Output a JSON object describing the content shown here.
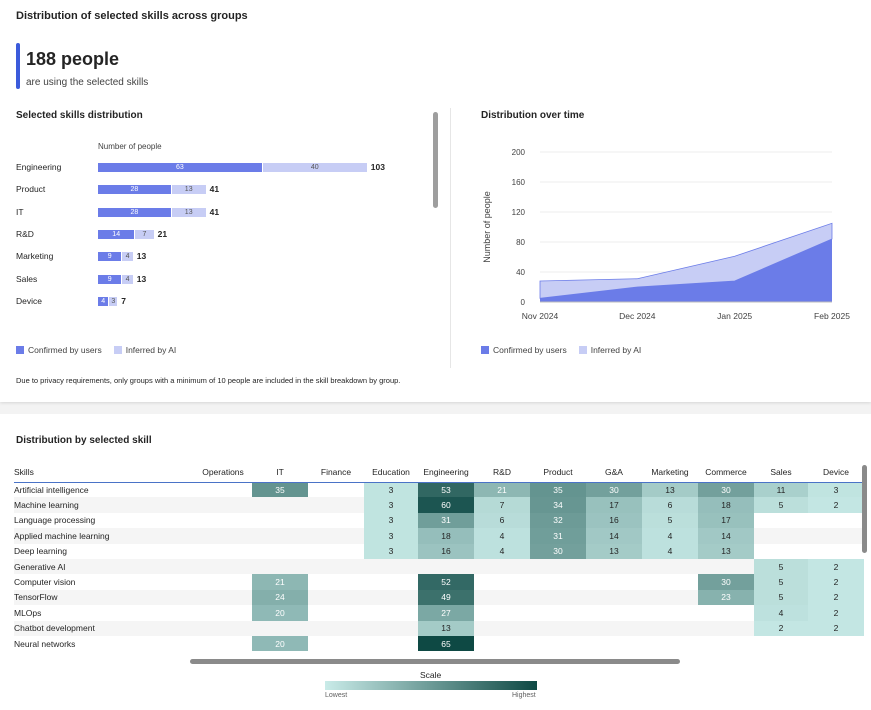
{
  "header": {
    "title": "Distribution of selected skills across groups",
    "count": "188 people",
    "subtitle": "are using the selected skills"
  },
  "skills_chart": {
    "title": "Selected skills distribution",
    "axis_label": "Number of people",
    "rows": [
      {
        "group": "Engineering",
        "confirmed": 63,
        "inferred": 40,
        "total": 103
      },
      {
        "group": "Product",
        "confirmed": 28,
        "inferred": 13,
        "total": 41
      },
      {
        "group": "IT",
        "confirmed": 28,
        "inferred": 13,
        "total": 41
      },
      {
        "group": "R&D",
        "confirmed": 14,
        "inferred": 7,
        "total": 21
      },
      {
        "group": "Marketing",
        "confirmed": 9,
        "inferred": 4,
        "total": 13
      },
      {
        "group": "Sales",
        "confirmed": 9,
        "inferred": 4,
        "total": 13
      },
      {
        "group": "Device",
        "confirmed": 4,
        "inferred": 3,
        "total": 7
      }
    ],
    "legend": [
      "Confirmed by users",
      "Inferred by AI"
    ],
    "note": "Due to privacy requirements, only groups with a minimum of 10 people are included in the skill breakdown by group."
  },
  "time_chart": {
    "title": "Distribution over time",
    "ylabel": "Number of people",
    "y_ticks": [
      "200",
      "160",
      "120",
      "80",
      "40",
      "0"
    ],
    "x_ticks": [
      "Nov 2024",
      "Dec 2024",
      "Jan 2025",
      "Feb 2025"
    ],
    "legend": [
      "Confirmed by users",
      "Inferred by AI"
    ]
  },
  "chart_data": {
    "type": "area",
    "x": [
      "Nov 2024",
      "Dec 2024",
      "Jan 2025",
      "Feb 2025"
    ],
    "ylim": [
      0,
      200
    ],
    "ylabel": "Number of people",
    "series": [
      {
        "name": "Confirmed by users",
        "values": [
          5,
          20,
          28,
          84
        ]
      },
      {
        "name": "Inferred by AI",
        "values": [
          23,
          11,
          33,
          21
        ]
      }
    ]
  },
  "heatmap": {
    "title": "Distribution by selected skill",
    "columns": [
      "Skills",
      "Operations",
      "IT",
      "Finance",
      "Education",
      "Engineering",
      "R&D",
      "Product",
      "G&A",
      "Marketing",
      "Commerce",
      "Sales",
      "Device"
    ],
    "rows": [
      {
        "skill": "Artificial intelligence",
        "values": [
          null,
          35,
          null,
          3,
          53,
          21,
          35,
          30,
          13,
          30,
          11,
          3
        ]
      },
      {
        "skill": "Machine learning",
        "values": [
          null,
          null,
          null,
          3,
          60,
          7,
          34,
          17,
          6,
          18,
          5,
          2
        ]
      },
      {
        "skill": "Language processing",
        "values": [
          null,
          null,
          null,
          3,
          31,
          6,
          32,
          16,
          5,
          17,
          null,
          null
        ]
      },
      {
        "skill": "Applied machine learning",
        "values": [
          null,
          null,
          null,
          3,
          18,
          4,
          31,
          14,
          4,
          14,
          null,
          null
        ]
      },
      {
        "skill": "Deep learning",
        "values": [
          null,
          null,
          null,
          3,
          16,
          4,
          30,
          13,
          4,
          13,
          null,
          null
        ]
      },
      {
        "skill": "Generative AI",
        "values": [
          null,
          null,
          null,
          null,
          null,
          null,
          null,
          null,
          null,
          null,
          5,
          2
        ]
      },
      {
        "skill": "Computer vision",
        "values": [
          null,
          21,
          null,
          null,
          52,
          null,
          null,
          null,
          null,
          30,
          5,
          2
        ]
      },
      {
        "skill": "TensorFlow",
        "values": [
          null,
          24,
          null,
          null,
          49,
          null,
          null,
          null,
          null,
          23,
          5,
          2
        ]
      },
      {
        "skill": "MLOps",
        "values": [
          null,
          20,
          null,
          null,
          27,
          null,
          null,
          null,
          null,
          null,
          4,
          2
        ]
      },
      {
        "skill": "Chatbot development",
        "values": [
          null,
          null,
          null,
          null,
          13,
          null,
          null,
          null,
          null,
          null,
          2,
          2
        ]
      },
      {
        "skill": "Neural networks",
        "values": [
          null,
          20,
          null,
          null,
          65,
          null,
          null,
          null,
          null,
          null,
          null,
          null
        ]
      }
    ],
    "scale_title": "Scale",
    "scale_low": "Lowest",
    "scale_high": "Highest"
  },
  "colors": {
    "confirmed": "#6b7ce8",
    "inferred": "#c7cdf5",
    "accent": "#3b5bdb",
    "heat_low": "#c9ebe8",
    "heat_high": "#0e4944"
  }
}
